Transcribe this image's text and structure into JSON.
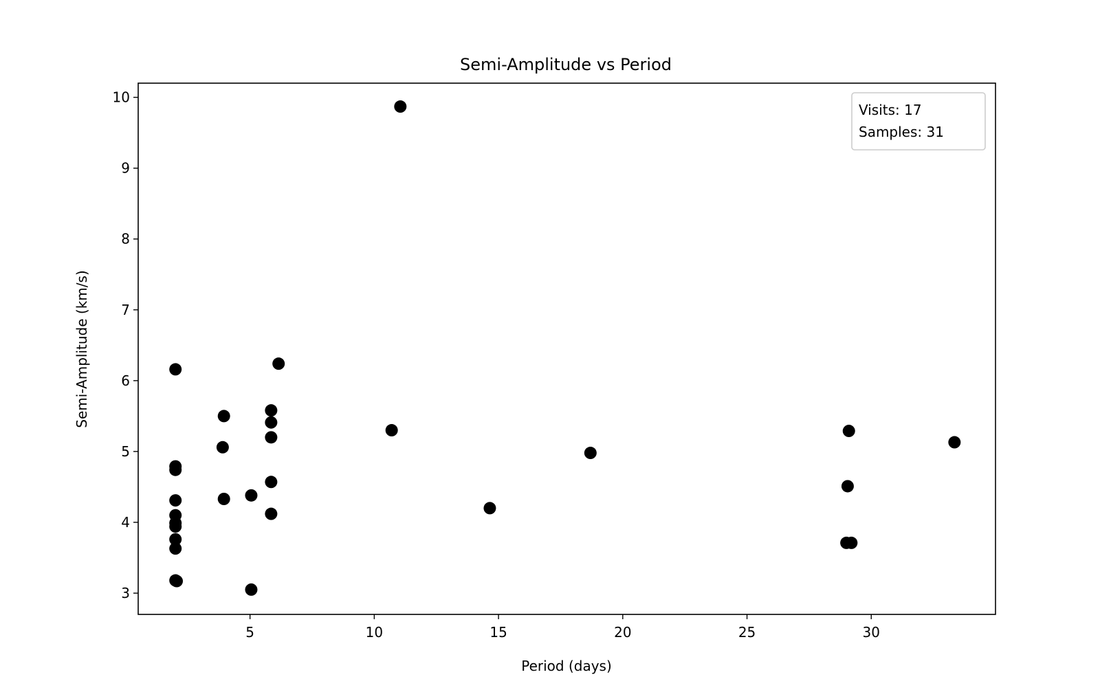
{
  "chart_data": {
    "type": "scatter",
    "title": "Semi-Amplitude vs Period",
    "xlabel": "Period (days)",
    "ylabel": "Semi-Amplitude (km/s)",
    "xlim": [
      0.5,
      35
    ],
    "ylim": [
      2.7,
      10.2
    ],
    "xticks": [
      5,
      10,
      15,
      20,
      25,
      30
    ],
    "yticks": [
      3,
      4,
      5,
      6,
      7,
      8,
      9,
      10
    ],
    "grid": false,
    "legend": {
      "position": "top-right",
      "lines": [
        "Visits: 17",
        "Samples: 31"
      ]
    },
    "colors": {
      "marker": "#000000",
      "axes": "#000000",
      "legend_border": "#cccccc"
    },
    "series": [
      {
        "x": [
          2.0,
          2.0,
          2.0,
          2.0,
          2.0,
          2.0,
          2.0,
          2.0,
          2.0,
          2.0,
          2.05,
          3.9,
          3.95,
          3.95,
          5.05,
          5.05,
          5.85,
          5.85,
          5.85,
          5.85,
          5.85,
          6.15,
          10.7,
          11.05,
          14.65,
          18.7,
          29.0,
          29.05,
          29.1,
          29.2,
          33.35
        ],
        "y": [
          6.16,
          4.79,
          4.74,
          4.31,
          4.1,
          3.99,
          3.94,
          3.76,
          3.63,
          3.18,
          3.17,
          5.06,
          5.5,
          4.33,
          4.38,
          3.05,
          5.58,
          5.41,
          5.2,
          4.57,
          4.12,
          6.24,
          5.3,
          9.87,
          4.2,
          4.98,
          3.71,
          4.51,
          5.29,
          3.71,
          5.13
        ]
      }
    ]
  }
}
